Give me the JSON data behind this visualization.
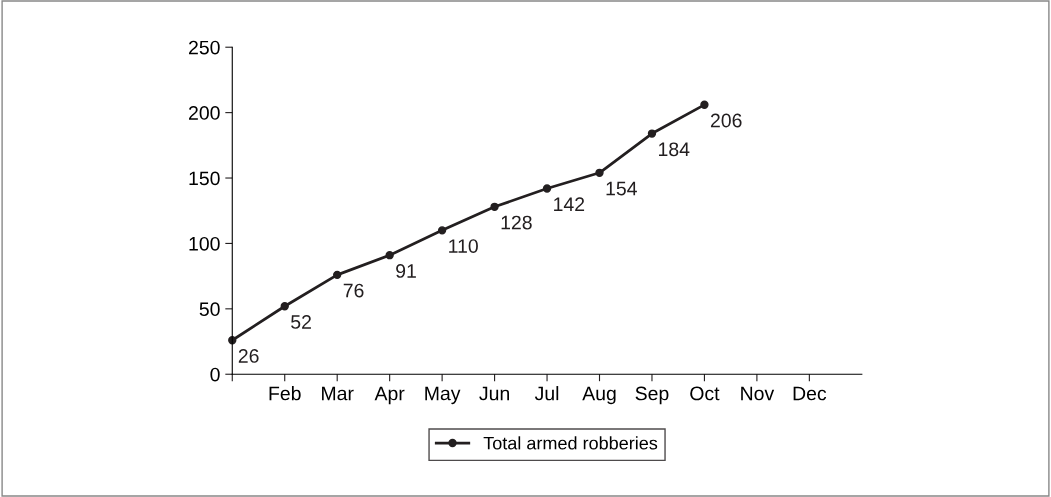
{
  "chart_data": {
    "type": "line",
    "categories": [
      null,
      "Feb",
      "Mar",
      "Apr",
      "May",
      "Jun",
      "Jul",
      "Aug",
      "Sep",
      "Oct",
      "Nov",
      "Dec"
    ],
    "series": [
      {
        "name": "Total armed robberies",
        "color": "#231f20",
        "values": [
          26,
          52,
          76,
          91,
          110,
          128,
          142,
          154,
          184,
          206,
          null,
          null
        ]
      }
    ],
    "ylim": [
      0,
      250
    ],
    "yticks": [
      0,
      50,
      100,
      150,
      200,
      250
    ],
    "data_labels": true,
    "marker": "circle",
    "line_style": "solid",
    "legend": "bottom",
    "grid": false
  }
}
